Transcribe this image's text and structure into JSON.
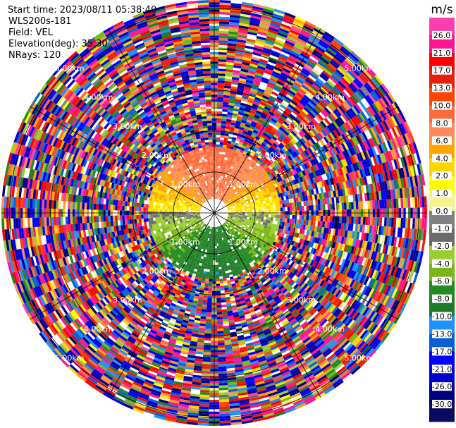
{
  "header": {
    "start_time": "Start time: 2023/08/11 05:38:40",
    "instrument": "WLS200s-181",
    "field": "Field: VEL",
    "elevation": "Elevation(deg): 35.30",
    "nrays": "NRays: 120"
  },
  "chart_data": {
    "type": "heatmap",
    "subtype": "polar PPI scan",
    "field": "VEL",
    "elevation_deg": 35.3,
    "n_rays": 120,
    "units": "m/s",
    "range_rings_km": [
      1.0,
      2.0,
      3.0,
      4.0,
      5.0
    ],
    "range_ring_labels": [
      "1.00km",
      "2.00km",
      "3.00km",
      "4.00km",
      "5.00km"
    ],
    "radial_lines_deg": [
      0,
      30,
      60,
      90,
      120,
      150,
      180,
      210,
      240,
      270,
      300,
      330
    ],
    "max_range_km": 5.2,
    "clean_region_max_range_km": 1.6,
    "pattern": "near-field positive velocities (yellow/orange) toward north, negative velocities (green) toward south, grey near-zero band along east-west; noisy random values beyond ~1.6 km",
    "colorbar": {
      "title": "m/s",
      "ticks": [
        "26.0",
        "21.0",
        "17.0",
        "13.0",
        "10.0",
        "8.0",
        "6.0",
        "4.0",
        "2.0",
        "1.0",
        "0.0",
        "-1.0",
        "-2.0",
        "-4.0",
        "-6.0",
        "-8.0",
        "-10.0",
        "-13.0",
        "-17.0",
        "-21.0",
        "-26.0",
        "-30.0"
      ],
      "colors": [
        "#ff3fb0",
        "#ff1493",
        "#ff0000",
        "#e8200a",
        "#ff4500",
        "#ff6a3c",
        "#ff8c5a",
        "#ffa500",
        "#ffd700",
        "#ffff00",
        "#f5f28a",
        "#808080",
        "#6b6b6b",
        "#9acd32",
        "#7cb518",
        "#228b22",
        "#1f7a2b",
        "#1e90ff",
        "#0a5fd6",
        "#0000ff",
        "#0000cd",
        "#000080",
        "#0a0a60"
      ]
    }
  }
}
